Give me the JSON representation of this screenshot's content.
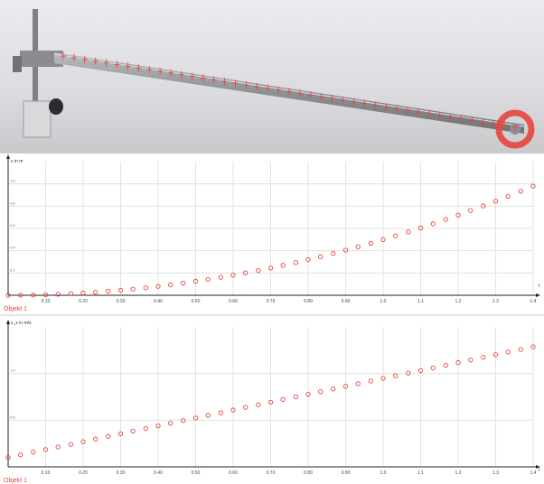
{
  "photo": {
    "description_label": "",
    "marker_color": "#e8453c",
    "target_ring_color": "#e8453c"
  },
  "chart_data": [
    {
      "type": "scatter",
      "ylabel": "x in m",
      "xlabel": "t",
      "legend": "Objekt 1",
      "series_name": "Objekt 1",
      "marker_color": "#e8453c",
      "grid": true,
      "xlim": [
        0.0,
        1.4
      ],
      "ylim": [
        0.0,
        1.2
      ],
      "xticks": [
        "0.10",
        "0.20",
        "0.30",
        "0.40",
        "0.50",
        "0.60",
        "0.70",
        "0.80",
        "0.90",
        "1.0",
        "1.1",
        "1.2",
        "1.3",
        "1.4"
      ],
      "yticks": [
        "0.2",
        "0.4",
        "0.6",
        "0.8",
        "1.0"
      ],
      "x": [
        0.0,
        0.033,
        0.067,
        0.1,
        0.133,
        0.167,
        0.2,
        0.233,
        0.267,
        0.3,
        0.333,
        0.367,
        0.4,
        0.433,
        0.467,
        0.5,
        0.533,
        0.567,
        0.6,
        0.633,
        0.667,
        0.7,
        0.733,
        0.767,
        0.8,
        0.833,
        0.867,
        0.9,
        0.933,
        0.967,
        1.0,
        1.033,
        1.067,
        1.1,
        1.133,
        1.167,
        1.2,
        1.233,
        1.267,
        1.3,
        1.333,
        1.367,
        1.4
      ],
      "y": [
        0.0,
        0.001,
        0.002,
        0.005,
        0.009,
        0.014,
        0.02,
        0.027,
        0.036,
        0.045,
        0.055,
        0.067,
        0.08,
        0.094,
        0.109,
        0.125,
        0.142,
        0.161,
        0.18,
        0.201,
        0.222,
        0.245,
        0.269,
        0.294,
        0.32,
        0.347,
        0.376,
        0.405,
        0.436,
        0.467,
        0.5,
        0.534,
        0.569,
        0.605,
        0.642,
        0.681,
        0.72,
        0.761,
        0.802,
        0.845,
        0.889,
        0.934,
        0.98
      ]
    },
    {
      "type": "scatter",
      "ylabel": "v_x in m/s",
      "xlabel": "t",
      "legend": "Objekt 1",
      "series_name": "Objekt 1",
      "marker_color": "#e8453c",
      "grid": true,
      "xlim": [
        0.0,
        1.4
      ],
      "ylim": [
        0.0,
        1.5
      ],
      "xticks": [
        "0.10",
        "0.20",
        "0.30",
        "0.40",
        "0.50",
        "0.60",
        "0.70",
        "0.80",
        "0.90",
        "1.0",
        "1.1",
        "1.2",
        "1.3",
        "1.4"
      ],
      "yticks": [
        "0.5",
        "1.0"
      ],
      "x": [
        0.0,
        0.033,
        0.067,
        0.1,
        0.133,
        0.167,
        0.2,
        0.233,
        0.267,
        0.3,
        0.333,
        0.367,
        0.4,
        0.433,
        0.467,
        0.5,
        0.533,
        0.567,
        0.6,
        0.633,
        0.667,
        0.7,
        0.733,
        0.767,
        0.8,
        0.833,
        0.867,
        0.9,
        0.933,
        0.967,
        1.0,
        1.033,
        1.067,
        1.1,
        1.133,
        1.167,
        1.2,
        1.233,
        1.267,
        1.3,
        1.333,
        1.367,
        1.4
      ],
      "y": [
        0.1,
        0.128,
        0.157,
        0.185,
        0.213,
        0.241,
        0.27,
        0.298,
        0.326,
        0.354,
        0.383,
        0.411,
        0.439,
        0.467,
        0.496,
        0.524,
        0.552,
        0.58,
        0.609,
        0.637,
        0.665,
        0.693,
        0.722,
        0.75,
        0.778,
        0.806,
        0.835,
        0.863,
        0.891,
        0.919,
        0.948,
        0.976,
        1.004,
        1.032,
        1.061,
        1.089,
        1.117,
        1.145,
        1.174,
        1.202,
        1.23,
        1.258,
        1.287
      ]
    }
  ]
}
